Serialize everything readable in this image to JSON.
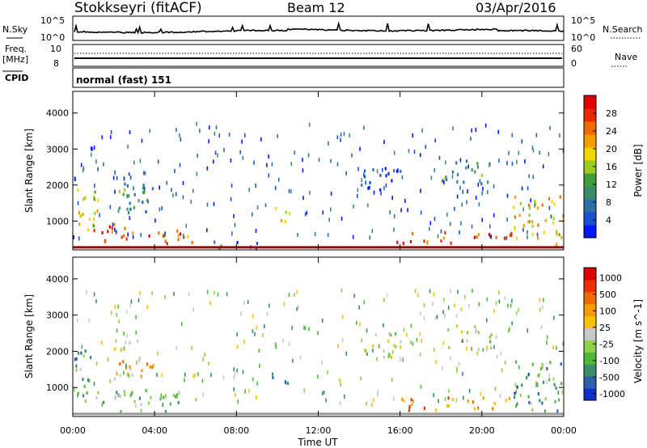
{
  "header": {
    "station": "Stokkseyri (fitACF)",
    "beam": "Beam 12",
    "date": "03/Apr/2016"
  },
  "top_panels": {
    "nsky_label": "N.Sky",
    "nsky_left_top": "10^5",
    "nsky_left_bottom": "10^0",
    "nsky_right_top": "10^5",
    "nsky_right_bottom": "10^0",
    "nsearch_label": "N.Search",
    "freq_label": "Freq.",
    "freq_unit": "[MHz]",
    "freq_tick_top": "10",
    "freq_tick_bottom": "8",
    "nave_tick_top": "60",
    "nave_tick_bottom": "0",
    "nave_label": "Nave",
    "cpid_label": "CPID",
    "cpid_value": "normal (fast) 151"
  },
  "chart_data": [
    {
      "type": "heatmap",
      "name": "power",
      "ylabel": "Slant Range [km]",
      "yticks": [
        "1000",
        "2000",
        "3000",
        "4000"
      ],
      "ylim": [
        200,
        4600
      ],
      "colorbar_label": "Power [dB]",
      "colorbar_ticks": [
        "4",
        "8",
        "12",
        "16",
        "20",
        "24",
        "28"
      ],
      "colorbar_colors": [
        "#0018ff",
        "#1a4fd6",
        "#2d6fa4",
        "#3d8a6a",
        "#3f9f3a",
        "#9acd1e",
        "#f2d600",
        "#f59d00",
        "#f06a00",
        "#e82a00",
        "#e00000"
      ],
      "regions": [
        {
          "t0": 0.0,
          "t1": 1.2,
          "r0": 600,
          "r1": 2000,
          "level": 0.55
        },
        {
          "t0": 1.0,
          "t1": 2.6,
          "r0": 600,
          "r1": 1000,
          "level": 0.9
        },
        {
          "t0": 1.5,
          "t1": 6.0,
          "r0": 300,
          "r1": 700,
          "level": 0.8
        },
        {
          "t0": 2.0,
          "t1": 4.0,
          "r0": 1200,
          "r1": 2300,
          "level": 0.3
        },
        {
          "t0": 6.0,
          "t1": 9.0,
          "r0": 200,
          "r1": 400,
          "level": 0.15
        },
        {
          "t0": 9.6,
          "t1": 10.6,
          "r0": 950,
          "r1": 1400,
          "level": 0.5
        },
        {
          "t0": 14.0,
          "t1": 16.0,
          "r0": 1800,
          "r1": 2500,
          "level": 0.15
        },
        {
          "t0": 15.8,
          "t1": 21.5,
          "r0": 350,
          "r1": 700,
          "level": 0.8
        },
        {
          "t0": 18.0,
          "t1": 20.5,
          "r0": 2000,
          "r1": 2700,
          "level": 0.35
        },
        {
          "t0": 21.5,
          "t1": 24.0,
          "r0": 300,
          "r1": 1700,
          "level": 0.65
        }
      ]
    },
    {
      "type": "heatmap",
      "name": "velocity",
      "ylabel": "Slant Range [km]",
      "xlabel": "Time UT",
      "xticks": [
        "00:00",
        "04:00",
        "08:00",
        "12:00",
        "16:00",
        "20:00",
        "00:00"
      ],
      "yticks": [
        "1000",
        "2000",
        "3000",
        "4000"
      ],
      "ylim": [
        200,
        4600
      ],
      "colorbar_label": "Velocity [m s^-1]",
      "colorbar_ticks": [
        "1000",
        "500",
        "100",
        "25",
        "-25",
        "-100",
        "-500",
        "-1000"
      ],
      "colorbar_colors": [
        "#1030c8",
        "#2a60b0",
        "#3b8d6a",
        "#4fb838",
        "#90d04a",
        "#c8c8c8",
        "#f4c200",
        "#f59a00",
        "#f06a00",
        "#e83000",
        "#e00000"
      ],
      "regions": [
        {
          "t0": 0.0,
          "t1": 1.2,
          "r0": 600,
          "r1": 2000,
          "level": 0.3
        },
        {
          "t0": 1.0,
          "t1": 6.0,
          "r0": 300,
          "r1": 900,
          "level": 0.35
        },
        {
          "t0": 2.0,
          "t1": 4.0,
          "r0": 1200,
          "r1": 2300,
          "level": 0.6
        },
        {
          "t0": 9.6,
          "t1": 10.6,
          "r0": 950,
          "r1": 1400,
          "level": 0.3
        },
        {
          "t0": 14.0,
          "t1": 16.0,
          "r0": 1800,
          "r1": 2500,
          "level": 0.48
        },
        {
          "t0": 15.8,
          "t1": 21.5,
          "r0": 350,
          "r1": 700,
          "level": 0.72
        },
        {
          "t0": 18.0,
          "t1": 20.5,
          "r0": 2000,
          "r1": 2700,
          "level": 0.5
        },
        {
          "t0": 21.5,
          "t1": 24.0,
          "r0": 300,
          "r1": 1700,
          "level": 0.25
        }
      ]
    }
  ]
}
